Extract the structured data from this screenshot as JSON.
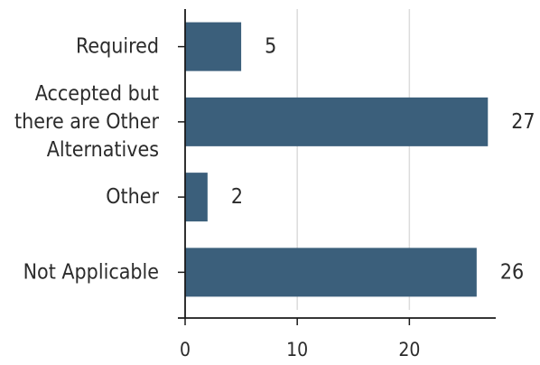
{
  "chart_data": {
    "type": "bar",
    "orientation": "horizontal",
    "categories": [
      [
        "Required"
      ],
      [
        "Accepted but",
        "there are Other",
        "Alternatives"
      ],
      [
        "Other"
      ],
      [
        "Not Applicable"
      ]
    ],
    "values": [
      5,
      27,
      2,
      26
    ],
    "value_labels": [
      "5",
      "27",
      "2",
      "26"
    ],
    "xlim": [
      0,
      27.3
    ],
    "xticks": [
      0,
      10,
      20
    ],
    "xtick_labels": [
      "0",
      "10",
      "20"
    ],
    "grid": "vertical",
    "colors": {
      "bar": "#3b5f7b",
      "grid": "#dcdcdc",
      "axis": "#1a1a1a"
    }
  }
}
